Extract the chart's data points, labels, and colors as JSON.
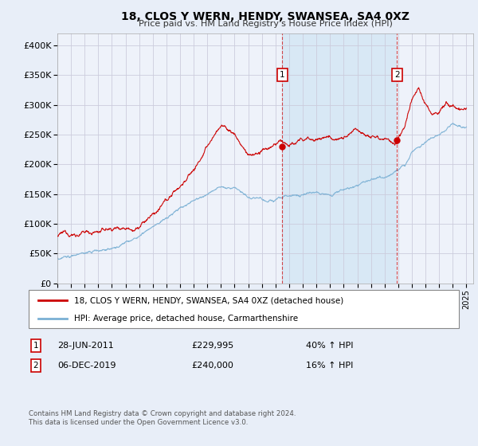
{
  "title": "18, CLOS Y WERN, HENDY, SWANSEA, SA4 0XZ",
  "subtitle": "Price paid vs. HM Land Registry's House Price Index (HPI)",
  "bg_color": "#e8eef8",
  "plot_bg_color": "#eef2fa",
  "grid_color": "#ccccdd",
  "ylim": [
    0,
    420000
  ],
  "yticks": [
    0,
    50000,
    100000,
    150000,
    200000,
    250000,
    300000,
    350000,
    400000
  ],
  "ytick_labels": [
    "£0",
    "£50K",
    "£100K",
    "£150K",
    "£200K",
    "£250K",
    "£300K",
    "£350K",
    "£400K"
  ],
  "xlim_start": 1995.0,
  "xlim_end": 2025.5,
  "red_line_color": "#cc0000",
  "blue_line_color": "#7ab0d4",
  "shade_color": "#d0e4f4",
  "marker1_x": 2011.5,
  "marker1_y": 229995,
  "marker2_x": 2019.92,
  "marker2_y": 240000,
  "legend_red_label": "18, CLOS Y WERN, HENDY, SWANSEA, SA4 0XZ (detached house)",
  "legend_blue_label": "HPI: Average price, detached house, Carmarthenshire",
  "marker1_date": "28-JUN-2011",
  "marker1_price": "£229,995",
  "marker1_hpi": "40% ↑ HPI",
  "marker2_date": "06-DEC-2019",
  "marker2_price": "£240,000",
  "marker2_hpi": "16% ↑ HPI",
  "footnote": "Contains HM Land Registry data © Crown copyright and database right 2024.\nThis data is licensed under the Open Government Licence v3.0."
}
